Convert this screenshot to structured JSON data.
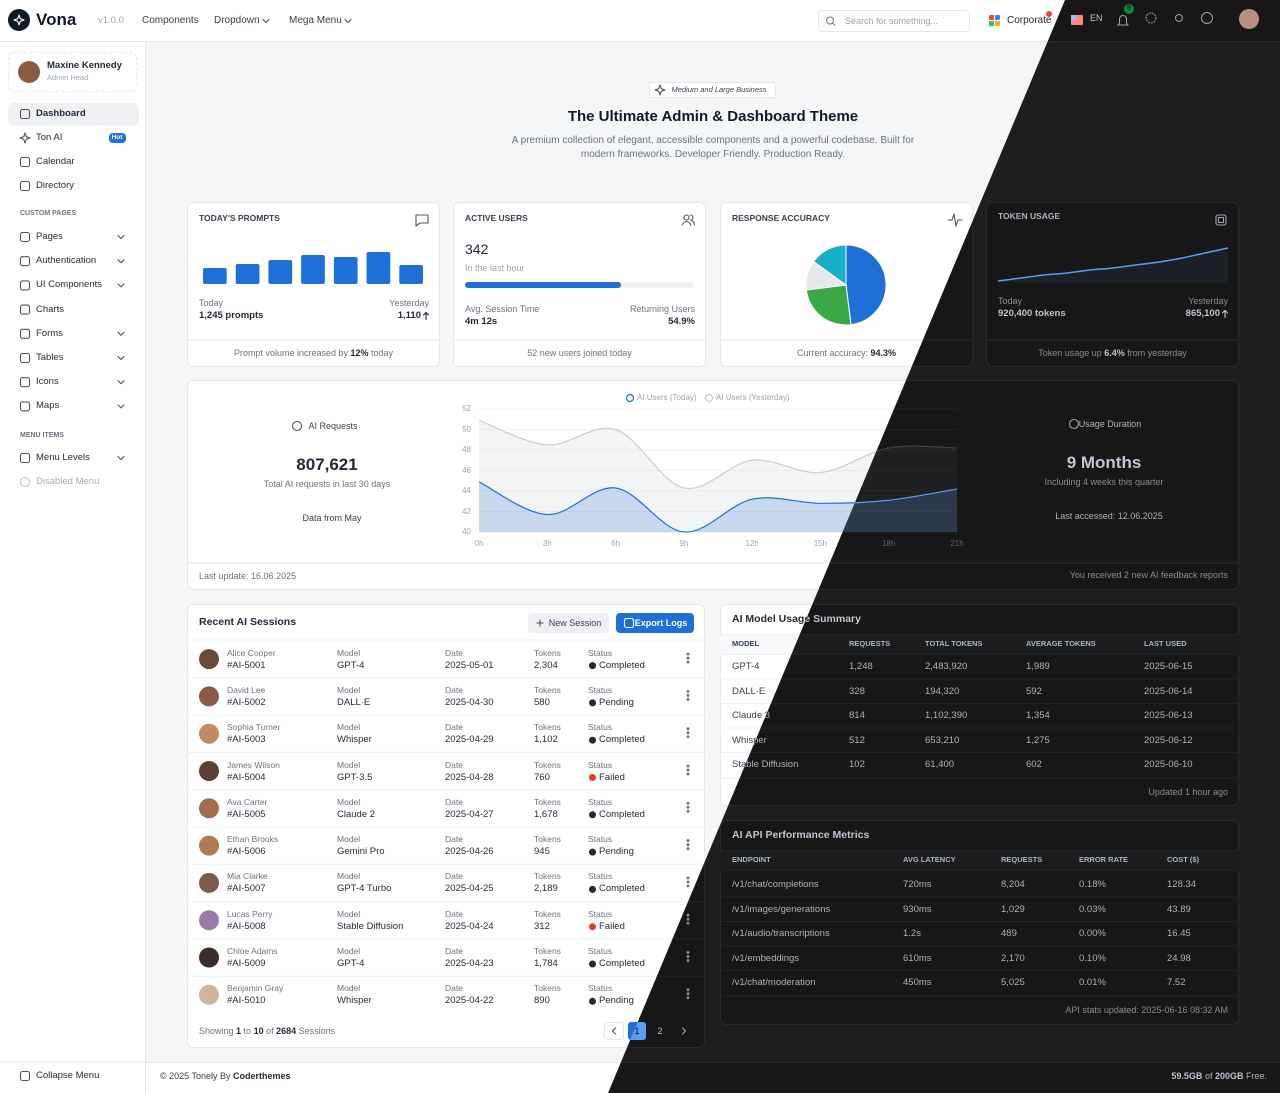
{
  "header": {
    "brand": "Vona",
    "version": "v1.0.0",
    "nav": [
      "Components",
      "Dropdown",
      "Mega Menu"
    ],
    "search_placeholder": "Search for something...",
    "workspace": "Corporate",
    "language": "EN",
    "notifications": "9"
  },
  "sidebar": {
    "user": {
      "name": "Maxine Kennedy",
      "role": "Admin Head"
    },
    "main": [
      {
        "label": "Dashboard"
      },
      {
        "label": "Ton AI",
        "badge": "Hot"
      },
      {
        "label": "Calendar"
      },
      {
        "label": "Directory"
      }
    ],
    "custom_title": "CUSTOM PAGES",
    "custom": [
      "Pages",
      "Authentication",
      "UI Components",
      "Charts",
      "Forms",
      "Tables",
      "Icons",
      "Maps"
    ],
    "menu_title": "MENU ITEMS",
    "menu": [
      "Menu Levels",
      "Disabled Menu"
    ],
    "collapse": "Collapse Menu"
  },
  "hero": {
    "badge": "Medium and Large Business",
    "title": "The Ultimate Admin & Dashboard Theme",
    "subtitle": "A premium collection of elegant, accessible components and a powerful codebase. Built for modern frameworks. Developer Friendly. Production Ready."
  },
  "cards": [
    {
      "title": "TODAY'S PROMPTS",
      "chart": {
        "type": "bar",
        "values": [
          16,
          20,
          24,
          29,
          27,
          32,
          19
        ],
        "color": "#1f6fd8",
        "ylim": [
          0,
          32
        ]
      },
      "left_label": "Today",
      "left_value": "1,245 prompts",
      "right_label": "Yesterday",
      "right_value": "1,110",
      "footer": [
        "Prompt volume increased by ",
        "12%",
        " today"
      ]
    },
    {
      "title": "ACTIVE USERS",
      "value": "342",
      "caption": "In the last hour",
      "progress": 68,
      "left_label": "Avg. Session Time",
      "left_value": "4m 12s",
      "right_label": "Returning Users",
      "right_value": "54.9%",
      "footer": [
        "52 new users joined today"
      ]
    },
    {
      "title": "RESPONSE ACCURACY",
      "chart": {
        "type": "pie",
        "values": [
          48,
          25,
          12,
          15
        ],
        "colors": [
          "#1f6fd8",
          "#3aa845",
          "#e6e8eb",
          "#17aec8"
        ]
      },
      "footer": [
        "Current accuracy: ",
        "94.3%"
      ]
    },
    {
      "title": "TOKEN USAGE",
      "chart": {
        "type": "line",
        "values": [
          1,
          4,
          7,
          9,
          12,
          14,
          17,
          20,
          24,
          29,
          34
        ],
        "color": "#1f6fd8",
        "ylim": [
          0,
          40
        ]
      },
      "left_label": "Today",
      "left_value": "920,400 tokens",
      "right_label": "Yesterday",
      "right_value": "865,100",
      "footer": [
        "Token usage up ",
        "6.4%",
        " from yesterday"
      ]
    }
  ],
  "usage": {
    "left": {
      "label": "AI Requests",
      "value": "807,621",
      "caption": "Total AI requests in last 30 days",
      "note": "Data from May"
    },
    "right": {
      "label": "Usage Duration",
      "value": "9 Months",
      "caption": "Including 4 weeks this quarter",
      "note": "Last accessed: 12.06.2025"
    },
    "chart": {
      "type": "area",
      "categories": [
        "0h",
        "3h",
        "6h",
        "9h",
        "12h",
        "15h",
        "18h",
        "21h"
      ],
      "series": [
        {
          "name": "AI Users (Today)",
          "color": "#1f6fd8",
          "values": [
            44.9,
            41.7,
            44.3,
            40.0,
            43.2,
            42.8,
            43.1,
            44.2
          ]
        },
        {
          "name": "AI Users (Yesterday)",
          "color": "#c9ccd1",
          "values": [
            50.9,
            48.5,
            50.0,
            44.3,
            47.0,
            45.8,
            48.2,
            48.2
          ]
        }
      ],
      "ylim": [
        40,
        52
      ],
      "yticks": [
        40,
        42,
        44,
        46,
        48,
        50,
        52
      ],
      "grid": true
    },
    "footer_left": "Last update: 16.06.2025",
    "footer_right": "You received 2 new AI feedback reports"
  },
  "sessions": {
    "title": "Recent AI Sessions",
    "actions": [
      "New Session",
      "Export Logs"
    ],
    "columns": [
      "Model",
      "Date",
      "Tokens",
      "Status"
    ],
    "rows": [
      {
        "name": "Alice Cooper",
        "id": "#AI-5001",
        "model": "GPT-4",
        "date": "2025-05-01",
        "tokens": "2,304",
        "status": "Completed",
        "status_color": "#1f2937"
      },
      {
        "name": "David Lee",
        "id": "#AI-5002",
        "model": "DALL·E",
        "date": "2025-04-30",
        "tokens": "580",
        "status": "Pending",
        "status_color": "#1f2937"
      },
      {
        "name": "Sophia Turner",
        "id": "#AI-5003",
        "model": "Whisper",
        "date": "2025-04-29",
        "tokens": "1,102",
        "status": "Completed",
        "status_color": "#1f2937"
      },
      {
        "name": "James Wilson",
        "id": "#AI-5004",
        "model": "GPT-3.5",
        "date": "2025-04-28",
        "tokens": "760",
        "status": "Failed",
        "status_color": "#e5392f"
      },
      {
        "name": "Ava Carter",
        "id": "#AI-5005",
        "model": "Claude 2",
        "date": "2025-04-27",
        "tokens": "1,678",
        "status": "Completed",
        "status_color": "#1f2937"
      },
      {
        "name": "Ethan Brooks",
        "id": "#AI-5006",
        "model": "Gemini Pro",
        "date": "2025-04-26",
        "tokens": "945",
        "status": "Pending",
        "status_color": "#1f2937"
      },
      {
        "name": "Mia Clarke",
        "id": "#AI-5007",
        "model": "GPT-4 Turbo",
        "date": "2025-04-25",
        "tokens": "2,189",
        "status": "Completed",
        "status_color": "#1f2937"
      },
      {
        "name": "Lucas Perry",
        "id": "#AI-5008",
        "model": "Stable Diffusion",
        "date": "2025-04-24",
        "tokens": "312",
        "status": "Failed",
        "status_color": "#e5392f"
      },
      {
        "name": "Chloe Adams",
        "id": "#AI-5009",
        "model": "GPT-4",
        "date": "2025-04-23",
        "tokens": "1,784",
        "status": "Completed",
        "status_color": "#1f2937"
      },
      {
        "name": "Benjamin Gray",
        "id": "#AI-5010",
        "model": "Whisper",
        "date": "2025-04-22",
        "tokens": "890",
        "status": "Pending",
        "status_color": "#1f2937"
      }
    ],
    "footer": [
      "Showing ",
      "1",
      " to ",
      "10",
      " of ",
      "2684",
      " Sessions"
    ],
    "pages": [
      "1",
      "2"
    ]
  },
  "model_usage": {
    "title": "AI Model Usage Summary",
    "columns": [
      "MODEL",
      "REQUESTS",
      "TOTAL TOKENS",
      "AVERAGE TOKENS",
      "LAST USED"
    ],
    "rows": [
      [
        "GPT-4",
        "1,248",
        "2,483,920",
        "1,989",
        "2025-06-15"
      ],
      [
        "DALL·E",
        "328",
        "194,320",
        "592",
        "2025-06-14"
      ],
      [
        "Claude 3",
        "814",
        "1,102,390",
        "1,354",
        "2025-06-13"
      ],
      [
        "Whisper",
        "512",
        "653,210",
        "1,275",
        "2025-06-12"
      ],
      [
        "Stable Diffusion",
        "102",
        "61,400",
        "602",
        "2025-06-10"
      ]
    ],
    "footer": "Updated 1 hour ago"
  },
  "api_metrics": {
    "title": "AI API Performance Metrics",
    "columns": [
      "ENDPOINT",
      "AVG LATENCY",
      "REQUESTS",
      "ERROR RATE",
      "COST ($)"
    ],
    "rows": [
      [
        "/v1/chat/completions",
        "720ms",
        "8,204",
        "0.18%",
        "128.34"
      ],
      [
        "/v1/images/generations",
        "930ms",
        "1,029",
        "0.03%",
        "43.89"
      ],
      [
        "/v1/audio/transcriptions",
        "1.2s",
        "489",
        "0.00%",
        "16.45"
      ],
      [
        "/v1/embeddings",
        "610ms",
        "2,170",
        "0.10%",
        "24.98"
      ],
      [
        "/v1/chat/moderation",
        "450ms",
        "5,025",
        "0.01%",
        "7.52"
      ]
    ],
    "footer": "API stats updated: 2025-06-16 08:32 AM"
  },
  "footer": {
    "left": [
      "© 2025 Tonely By ",
      "Coderthemes"
    ],
    "right": [
      "59.5GB",
      " of ",
      "200GB",
      " Free."
    ]
  }
}
